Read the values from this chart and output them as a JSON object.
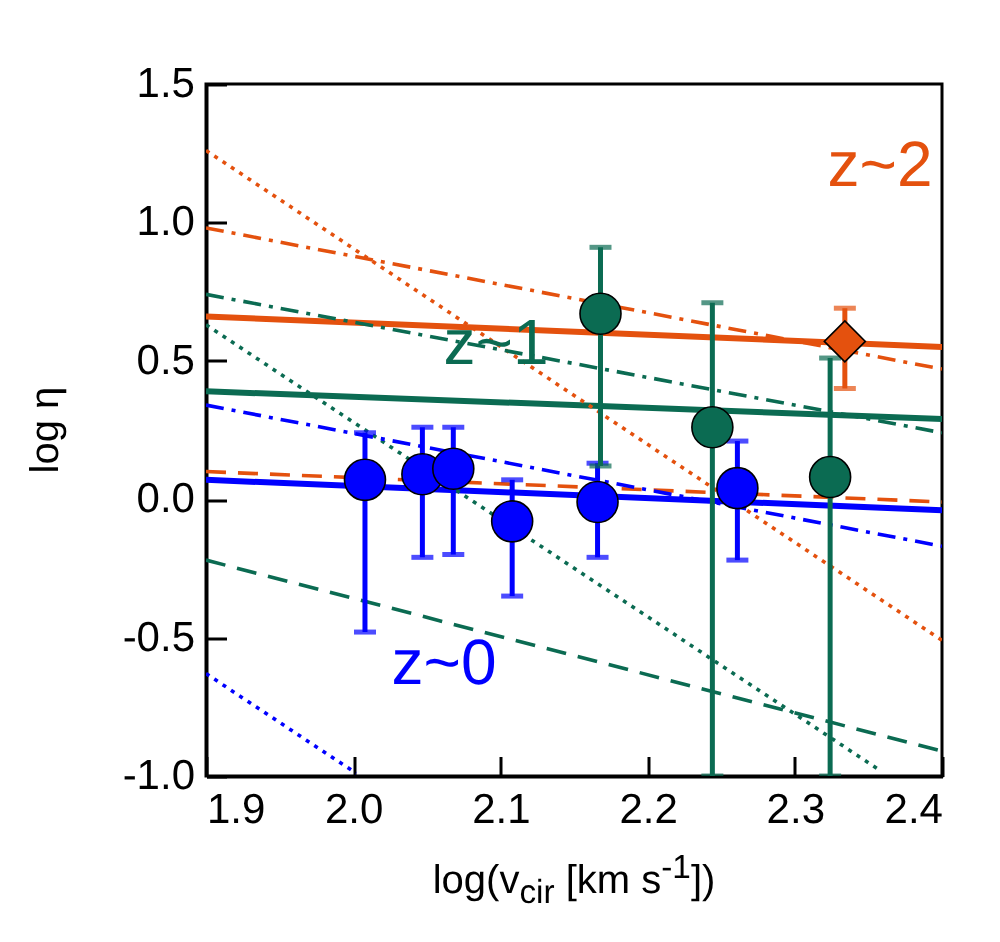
{
  "chart_data": {
    "type": "line",
    "xlabel": "log(v$_{cir}$ [km s$^{-1}$])",
    "ylabel": "log η",
    "xlim": [
      1.9,
      2.4
    ],
    "xticks": [
      1.9,
      {
        "value": 2.0,
        "label": "2.0"
      },
      2.1,
      2.2,
      2.3,
      2.4
    ],
    "ylim": [
      -1.0,
      1.5
    ],
    "yticks": [
      {
        "value": -1.0,
        "label": "-1.0"
      },
      -0.5,
      {
        "value": 0,
        "label": "0.0"
      },
      0.5,
      {
        "value": 1.0,
        "label": "1.0"
      },
      1.5
    ],
    "grid": false,
    "annotations": [
      "z~0",
      "z~1",
      "z~2"
    ],
    "series": [
      {
        "color": "#0000ff",
        "x": [
          1.9,
          2.4
        ],
        "values": [
          0.07,
          -0.04
        ],
        "line_style": "solid",
        "marker": "none"
      },
      {
        "color": "#0b6b52",
        "x": [
          1.9,
          2.4
        ],
        "values": [
          0.39,
          0.29
        ],
        "line_style": "solid",
        "marker": "none"
      },
      {
        "color": "#e4510e",
        "x": [
          1.9,
          2.4
        ],
        "values": [
          0.66,
          0.55
        ],
        "line_style": "solid",
        "marker": "none"
      },
      {
        "color": "#e4510e",
        "x": [
          1.9,
          2.4
        ],
        "values": [
          0.98,
          0.47
        ],
        "line_style": "dashdot",
        "marker": "none"
      },
      {
        "color": "#e4510e",
        "x": [
          1.9,
          2.4
        ],
        "values": [
          0.1,
          -0.01
        ],
        "line_style": "dashed",
        "marker": "none"
      },
      {
        "color": "#e4510e",
        "x": [
          1.9,
          2.4
        ],
        "values": [
          1.26,
          -0.51
        ],
        "line_style": "dotted",
        "marker": "none"
      },
      {
        "color": "#0b6b52",
        "x": [
          1.9,
          2.4
        ],
        "values": [
          0.74,
          0.24
        ],
        "line_style": "dashdot",
        "marker": "none"
      },
      {
        "color": "#0b6b52",
        "x": [
          1.9,
          2.358
        ],
        "values": [
          0.63,
          -0.98
        ],
        "line_style": "dotted",
        "marker": "none"
      },
      {
        "color": "#0b6b52",
        "x": [
          1.9,
          2.4
        ],
        "values": [
          -0.22,
          -0.91
        ],
        "line_style": "dashed",
        "marker": "none"
      },
      {
        "color": "#0000ff",
        "x": [
          1.9,
          2.4
        ],
        "values": [
          0.34,
          -0.17
        ],
        "line_style": "dashdot",
        "marker": "none"
      },
      {
        "color": "#0000ff",
        "x": [
          1.9,
          2.002
        ],
        "values": [
          -0.63,
          -0.99
        ],
        "line_style": "dotted",
        "marker": "none"
      },
      {
        "type": "scatter",
        "color": "#0000ff",
        "marker": "circle",
        "x": [
          2.008,
          2.047,
          2.068,
          2.108,
          2.166,
          2.261
        ],
        "values": [
          0.07,
          0.09,
          0.11,
          -0.08,
          -0.01,
          0.04
        ],
        "errors": [
          [
            -0.48,
            0.24
          ],
          [
            -0.21,
            0.26
          ],
          [
            -0.2,
            0.26
          ],
          [
            -0.35,
            0.07
          ],
          [
            -0.21,
            0.13
          ],
          [
            -0.22,
            0.21
          ]
        ]
      },
      {
        "type": "scatter",
        "color": "#0b6b52",
        "marker": "circle",
        "x": [
          2.168,
          2.244,
          2.324
        ],
        "values": [
          0.67,
          0.26,
          0.08
        ],
        "errors": [
          [
            0.12,
            0.91
          ],
          [
            -1.0,
            0.71
          ],
          [
            -1.0,
            0.51
          ]
        ]
      },
      {
        "type": "scatter",
        "color": "#e4510e",
        "marker": "diamond",
        "x": [
          2.334
        ],
        "values": [
          0.57
        ],
        "errors": [
          [
            0.4,
            0.69
          ]
        ]
      }
    ]
  }
}
